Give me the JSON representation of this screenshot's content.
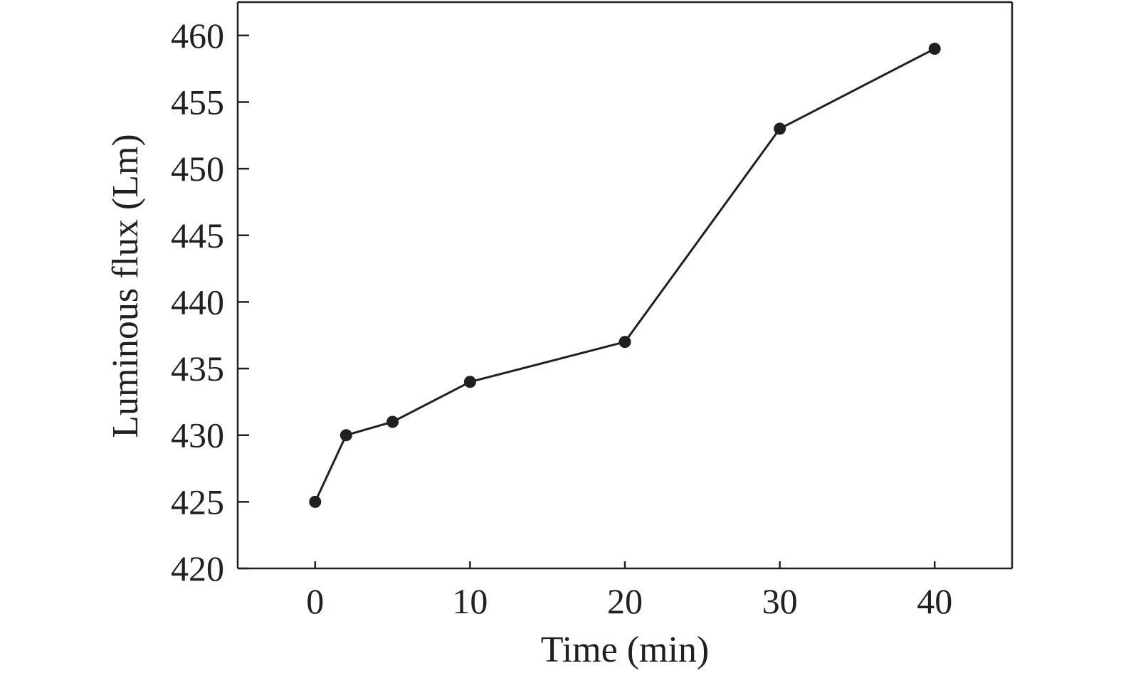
{
  "chart_data": {
    "type": "line",
    "title": "",
    "xlabel": "Time (min)",
    "ylabel": "Luminous flux (Lm)",
    "xlim": [
      -5,
      45
    ],
    "ylim": [
      420,
      462.5
    ],
    "x_ticks": [
      0,
      10,
      20,
      30,
      40
    ],
    "y_ticks": [
      420,
      425,
      430,
      435,
      440,
      445,
      450,
      455,
      460
    ],
    "grid": false,
    "legend": "none",
    "series": [
      {
        "x": [
          0,
          2,
          5,
          10,
          20,
          30,
          40
        ],
        "values": [
          425,
          430,
          431,
          434,
          437,
          453,
          459
        ],
        "color": "#231f20",
        "marker": "circle"
      }
    ]
  }
}
